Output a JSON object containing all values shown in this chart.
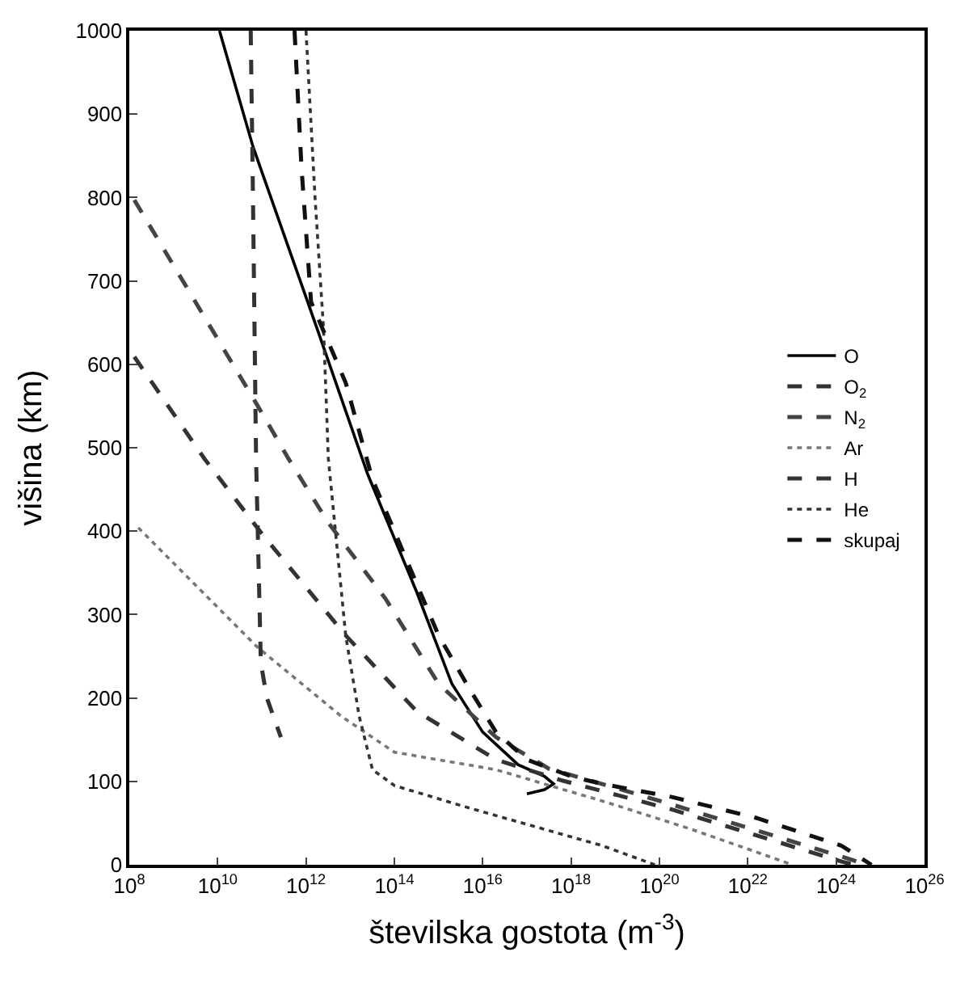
{
  "chart_data": {
    "type": "line",
    "xlabel": "številska gostota (m$^{-3}$)",
    "ylabel": "višina (km)",
    "log": "x",
    "legend": "right",
    "marker": "none",
    "xlim": [
      100000000.0,
      1e+26
    ],
    "ylim": [
      0,
      1000
    ],
    "xticks": [
      {
        "value": 100000000.0,
        "label": "10$^{8}$"
      },
      {
        "value": 10000000000.0,
        "label": "10$^{10}$"
      },
      {
        "value": 1000000000000.0,
        "label": "10$^{12}$"
      },
      {
        "value": 100000000000000.0,
        "label": "10$^{14}$"
      },
      {
        "value": 1e+16,
        "label": "10$^{16}$"
      },
      {
        "value": 1e+18,
        "label": "10$^{18}$"
      },
      {
        "value": 1e+20,
        "label": "10$^{20}$"
      },
      {
        "value": 1e+22,
        "label": "10$^{22}$"
      },
      {
        "value": 1e+24,
        "label": "10$^{24}$"
      },
      {
        "value": 1e+26,
        "label": "10$^{26}$"
      }
    ],
    "yticks": [
      0,
      100,
      200,
      300,
      400,
      500,
      600,
      700,
      800,
      900,
      1000
    ],
    "series": [
      {
        "name": "O",
        "color": "#000000",
        "line_style": "solid",
        "x": [
          11000000000.0,
          63000000000.0,
          1800000000000.0,
          25000000000000.0,
          320000000000000.0,
          2000000000000000.0,
          1e+16,
          6.3e+16,
          2.5e+17,
          4e+17,
          2.5e+17,
          1e+17
        ],
        "values": [
          1000,
          861,
          642,
          468,
          327,
          217,
          159,
          120,
          106,
          97,
          90,
          85
        ]
      },
      {
        "name": "O$_{2}$",
        "color": "#333333",
        "line_style": "dashed",
        "x": [
          130000000.0,
          5000000000.0,
          100000000000.0,
          7900000000000.0,
          320000000000000.0,
          2e+16,
          6.3e+17,
          2e+20,
          1.3e+24,
          2.5e+24
        ],
        "values": [
          609,
          487,
          397,
          275,
          184,
          126,
          101,
          66,
          4,
          0
        ]
      },
      {
        "name": "N$_{2}$",
        "color": "#444444",
        "line_style": "dashed",
        "x": [
          130000000.0,
          79000000000.0,
          400000000000.0,
          3200000000000.0,
          63000000000000.0,
          1000000000000000.0,
          2e+16,
          3.2e+17,
          3.2e+18,
          2e+20,
          1.3e+24,
          5e+24
        ],
        "values": [
          797,
          551,
          487,
          410,
          319,
          217,
          153,
          115,
          100,
          72,
          10,
          0
        ]
      },
      {
        "name": "Ar",
        "color": "#777777",
        "line_style": "dotted",
        "x": [
          160000000.0,
          79000000000.0,
          6300000000000.0,
          100000000000000.0,
          2e+16,
          6.3e+18,
          5e+20,
          6.3e+22,
          1e+23
        ],
        "values": [
          404,
          261,
          178,
          135,
          114,
          75,
          43,
          4,
          0
        ]
      },
      {
        "name": "H",
        "color": "#333333",
        "line_style": "dashed",
        "x": [
          56000000000.0,
          63000000000.0,
          74000000000.0,
          95000000000.0,
          130000000000.0,
          270000000000.0
        ],
        "values": [
          1000,
          800,
          487,
          242,
          200,
          153
        ]
      },
      {
        "name": "He",
        "color": "#333333",
        "line_style": "dotted",
        "x": [
          1000000000000.0,
          1600000000000.0,
          2500000000000.0,
          3200000000000.0,
          7900000000000.0,
          16000000000000.0,
          32000000000000.0,
          100000000000000.0,
          5000000000000000.0,
          5e+18,
          7.9e+19
        ],
        "values": [
          1000,
          800,
          642,
          487,
          275,
          178,
          114,
          95,
          68,
          23,
          0
        ]
      },
      {
        "name": "skupaj",
        "color": "#111111",
        "line_style": "dashed",
        "x": [
          550000000000.0,
          790000000000.0,
          1300000000000.0,
          7900000000000.0,
          32000000000000.0,
          1000000000000000.0,
          5000000000000000.0,
          2e+16,
          1e+17,
          1e+18,
          5e+18,
          2e+20,
          1.6e+22,
          1.3e+24,
          6.3e+24
        ],
        "values": [
          1000,
          836,
          675,
          578,
          462,
          275,
          211,
          159,
          126,
          106,
          97,
          81,
          56,
          23,
          0
        ]
      }
    ]
  }
}
